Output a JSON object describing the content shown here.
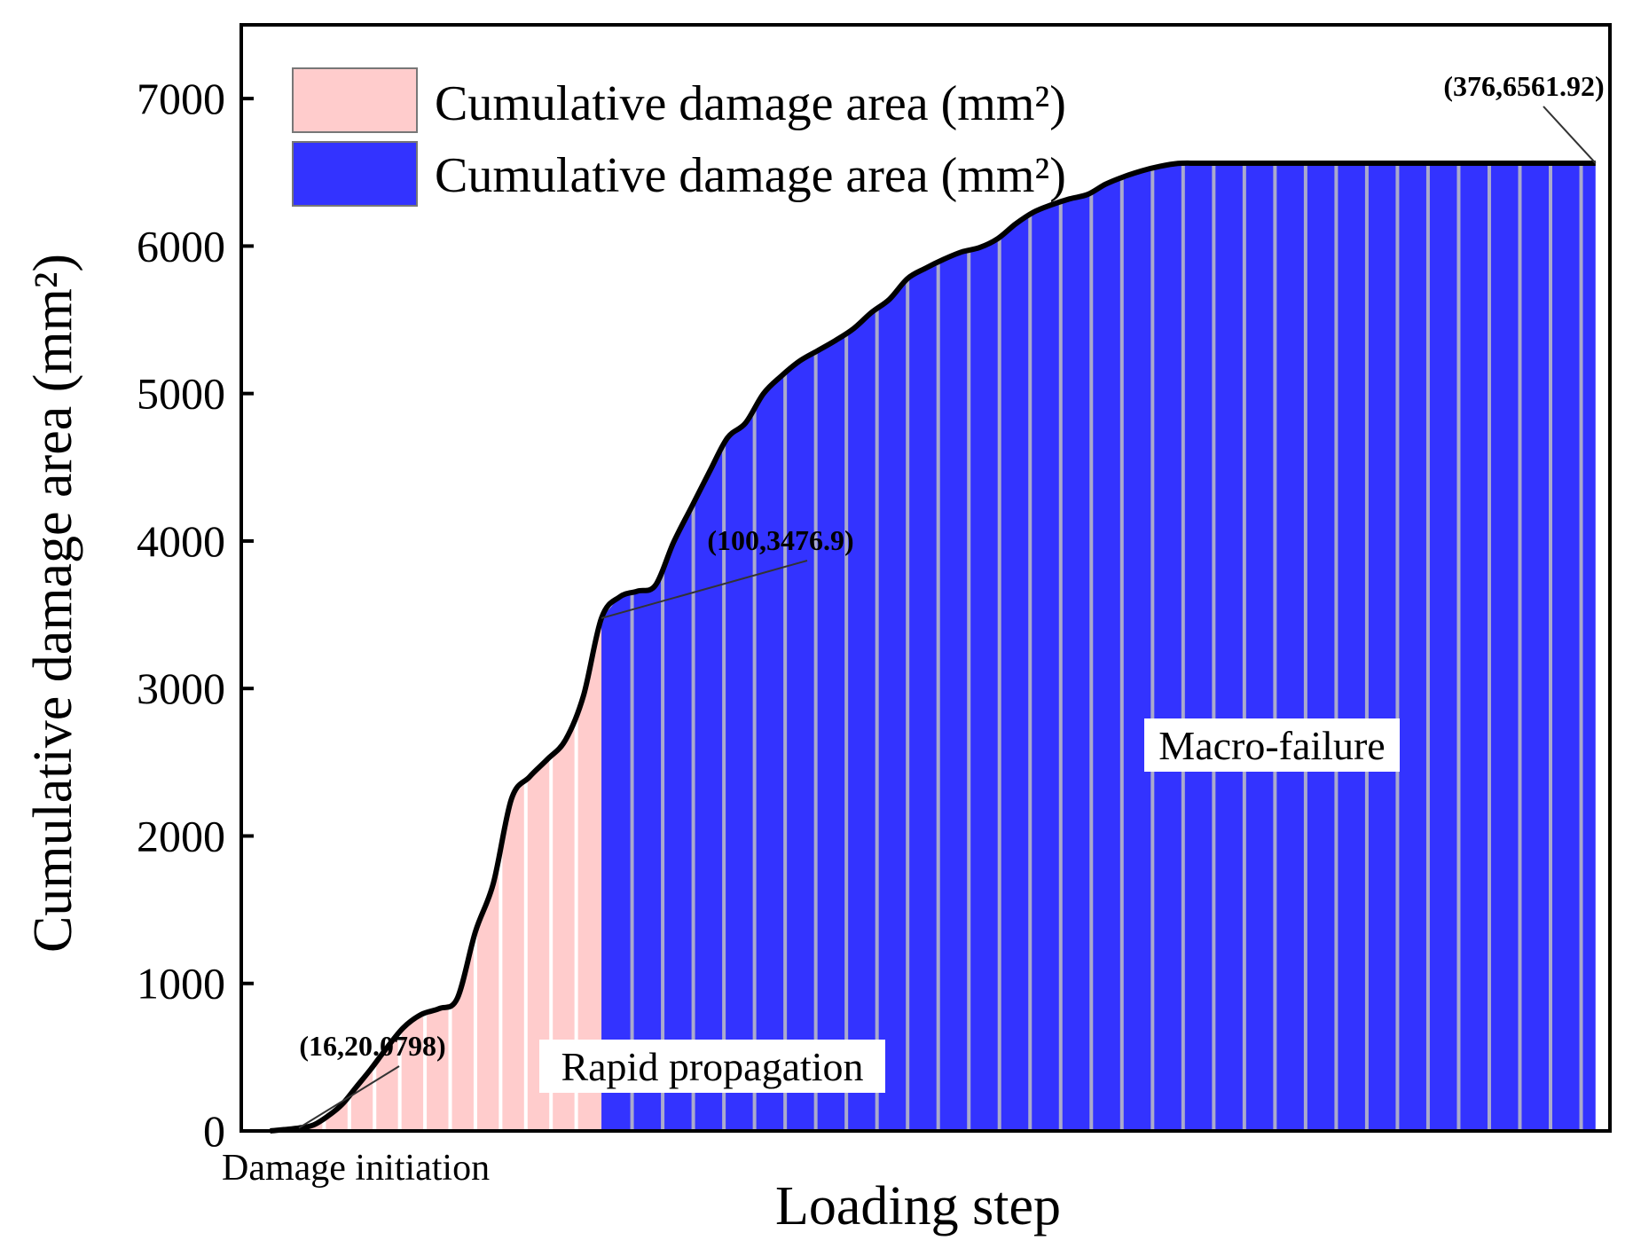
{
  "chart_data": {
    "type": "bar",
    "xlabel": "Loading step",
    "ylabel": "Cumulative damage area (mm²)",
    "xlim": [
      0,
      380
    ],
    "ylim": [
      0,
      7500
    ],
    "yticks": [
      0,
      1000,
      2000,
      3000,
      4000,
      5000,
      6000,
      7000
    ],
    "grid": false,
    "legend_position": "top-left",
    "legend": [
      {
        "label": "Cumulative damage area (mm²)",
        "color": "#ffcccc"
      },
      {
        "label": "Cumulative damage area (mm²)",
        "color": "#3333ff"
      }
    ],
    "curve": {
      "x": [
        8,
        16,
        20,
        24,
        28,
        32,
        36,
        40,
        45,
        50,
        55,
        60,
        65,
        70,
        75,
        80,
        85,
        90,
        95,
        100,
        105,
        110,
        115,
        120,
        125,
        130,
        135,
        140,
        145,
        150,
        155,
        160,
        165,
        170,
        175,
        180,
        185,
        190,
        195,
        200,
        205,
        210,
        215,
        220,
        225,
        230,
        235,
        240,
        245,
        250,
        255,
        260,
        265,
        270,
        275,
        280,
        285,
        290,
        295,
        300,
        305,
        310,
        315,
        320,
        325,
        330,
        335,
        340,
        345,
        350,
        355,
        360,
        365,
        370,
        376
      ],
      "y": [
        0,
        20.08,
        40,
        100,
        180,
        300,
        420,
        550,
        700,
        790,
        830,
        900,
        1350,
        1680,
        2250,
        2400,
        2520,
        2650,
        2950,
        3476.9,
        3620,
        3660,
        3700,
        3990,
        4230,
        4470,
        4700,
        4800,
        5000,
        5120,
        5220,
        5290,
        5360,
        5440,
        5550,
        5640,
        5780,
        5850,
        5910,
        5960,
        5990,
        6050,
        6150,
        6230,
        6280,
        6320,
        6350,
        6420,
        6470,
        6510,
        6540,
        6560,
        6561.92,
        6561.92,
        6561.92,
        6561.92,
        6561.92,
        6561.92,
        6561.92,
        6561.92,
        6561.92,
        6561.92,
        6561.92,
        6561.92,
        6561.92,
        6561.92,
        6561.92,
        6561.92,
        6561.92,
        6561.92,
        6561.92,
        6561.92,
        6561.92,
        6561.92,
        6561.92
      ]
    },
    "phases": [
      {
        "name": "Damage initiation",
        "x_start": 8,
        "x_end": 16,
        "color": "#ffffff"
      },
      {
        "name": "Rapid propagation",
        "x_start": 16,
        "x_end": 100,
        "color": "#ffcccc"
      },
      {
        "name": "Macro-failure",
        "x_start": 100,
        "x_end": 376,
        "color": "#3333ff"
      }
    ],
    "annotations": [
      {
        "text": "(16,20.0798)",
        "x": 16,
        "y": 20.0798
      },
      {
        "text": "(100,3476.9)",
        "x": 100,
        "y": 3476.9
      },
      {
        "text": "(376,6561.92)",
        "x": 376,
        "y": 6561.92
      }
    ]
  }
}
